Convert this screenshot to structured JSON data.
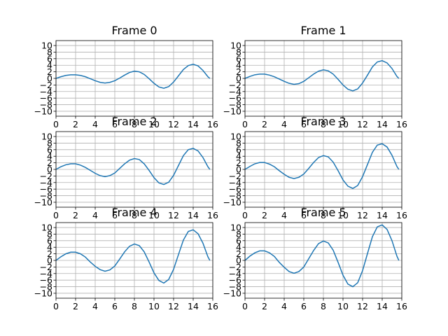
{
  "chart_data": [
    {
      "type": "line",
      "title": "Frame 0",
      "xlim": [
        0,
        16
      ],
      "ylim": [
        -11.5,
        11.5
      ],
      "grid": true,
      "x": [
        0,
        0.5,
        1,
        1.5,
        2,
        2.5,
        3,
        3.5,
        4,
        4.5,
        5,
        5.5,
        6,
        6.5,
        7,
        7.5,
        8,
        8.5,
        9,
        9.5,
        10,
        10.5,
        11,
        11.5,
        12,
        12.5,
        13,
        13.5,
        14,
        14.5,
        15,
        15.5,
        15.7
      ],
      "y": [
        0,
        0.5,
        0.9,
        1.1,
        1.1,
        0.9,
        0.5,
        -0.1,
        -0.7,
        -1.2,
        -1.4,
        -1.2,
        -0.7,
        0.1,
        1.0,
        1.8,
        2.2,
        2.0,
        1.2,
        -0.1,
        -1.5,
        -2.6,
        -3.0,
        -2.5,
        -1.1,
        0.8,
        2.7,
        3.9,
        4.3,
        3.8,
        2.4,
        0.5,
        0
      ]
    },
    {
      "type": "line",
      "title": "Frame 1",
      "xlim": [
        0,
        16
      ],
      "ylim": [
        -11.5,
        11.5
      ],
      "grid": true,
      "x": [
        0,
        0.5,
        1,
        1.5,
        2,
        2.5,
        3,
        3.5,
        4,
        4.5,
        5,
        5.5,
        6,
        6.5,
        7,
        7.5,
        8,
        8.5,
        9,
        9.5,
        10,
        10.5,
        11,
        11.5,
        12,
        12.5,
        13,
        13.5,
        14,
        14.5,
        15,
        15.5,
        15.7
      ],
      "y": [
        0,
        0.6,
        1.1,
        1.3,
        1.3,
        1.0,
        0.5,
        -0.2,
        -0.9,
        -1.5,
        -1.8,
        -1.6,
        -0.9,
        0.2,
        1.3,
        2.2,
        2.6,
        2.3,
        1.3,
        -0.3,
        -2.0,
        -3.3,
        -3.8,
        -3.2,
        -1.4,
        1.0,
        3.5,
        5.0,
        5.4,
        4.7,
        3.0,
        0.6,
        0
      ]
    },
    {
      "type": "line",
      "title": "Frame 2",
      "xlim": [
        0,
        16
      ],
      "ylim": [
        -11.5,
        11.5
      ],
      "grid": true,
      "x": [
        0,
        0.5,
        1,
        1.5,
        2,
        2.5,
        3,
        3.5,
        4,
        4.5,
        5,
        5.5,
        6,
        6.5,
        7,
        7.5,
        8,
        8.5,
        9,
        9.5,
        10,
        10.5,
        11,
        11.5,
        12,
        12.5,
        13,
        13.5,
        14,
        14.5,
        15,
        15.5,
        15.7
      ],
      "y": [
        0,
        0.8,
        1.4,
        1.7,
        1.7,
        1.3,
        0.6,
        -0.3,
        -1.2,
        -1.9,
        -2.2,
        -1.9,
        -1.1,
        0.3,
        1.7,
        2.8,
        3.3,
        3.0,
        1.7,
        -0.3,
        -2.5,
        -4.1,
        -4.6,
        -3.9,
        -1.8,
        1.2,
        4.2,
        6.0,
        6.4,
        5.6,
        3.6,
        0.8,
        0
      ]
    },
    {
      "type": "line",
      "title": "Frame 3",
      "xlim": [
        0,
        16
      ],
      "ylim": [
        -11.5,
        11.5
      ],
      "grid": true,
      "x": [
        0,
        0.5,
        1,
        1.5,
        2,
        2.5,
        3,
        3.5,
        4,
        4.5,
        5,
        5.5,
        6,
        6.5,
        7,
        7.5,
        8,
        8.5,
        9,
        9.5,
        10,
        10.5,
        11,
        11.5,
        12,
        12.5,
        13,
        13.5,
        14,
        14.5,
        15,
        15.5,
        15.7
      ],
      "y": [
        0,
        0.9,
        1.7,
        2.1,
        2.1,
        1.6,
        0.8,
        -0.4,
        -1.5,
        -2.4,
        -2.8,
        -2.4,
        -1.4,
        0.3,
        2.1,
        3.6,
        4.2,
        3.8,
        2.2,
        -0.4,
        -3.2,
        -5.1,
        -5.8,
        -4.9,
        -2.2,
        1.5,
        5.2,
        7.4,
        7.8,
        6.8,
        4.3,
        0.9,
        0
      ]
    },
    {
      "type": "line",
      "title": "Frame 4",
      "xlim": [
        0,
        16
      ],
      "ylim": [
        -11.5,
        11.5
      ],
      "grid": true,
      "x": [
        0,
        0.5,
        1,
        1.5,
        2,
        2.5,
        3,
        3.5,
        4,
        4.5,
        5,
        5.5,
        6,
        6.5,
        7,
        7.5,
        8,
        8.5,
        9,
        9.5,
        10,
        10.5,
        11,
        11.5,
        12,
        12.5,
        13,
        13.5,
        14,
        14.5,
        15,
        15.5,
        15.7
      ],
      "y": [
        0,
        1.1,
        2.0,
        2.5,
        2.5,
        2.0,
        1.0,
        -0.5,
        -1.8,
        -2.8,
        -3.3,
        -2.9,
        -1.7,
        0.4,
        2.6,
        4.3,
        5.0,
        4.5,
        2.6,
        -0.5,
        -3.8,
        -6.1,
        -6.9,
        -5.8,
        -2.7,
        1.8,
        6.2,
        8.8,
        9.3,
        8.1,
        5.2,
        1.1,
        0
      ]
    },
    {
      "type": "line",
      "title": "Frame 5",
      "xlim": [
        0,
        16
      ],
      "ylim": [
        -11.5,
        11.5
      ],
      "grid": true,
      "x": [
        0,
        0.5,
        1,
        1.5,
        2,
        2.5,
        3,
        3.5,
        4,
        4.5,
        5,
        5.5,
        6,
        6.5,
        7,
        7.5,
        8,
        8.5,
        9,
        9.5,
        10,
        10.5,
        11,
        11.5,
        12,
        12.5,
        13,
        13.5,
        14,
        14.5,
        15,
        15.5,
        15.7
      ],
      "y": [
        0,
        1.3,
        2.3,
        2.9,
        2.9,
        2.3,
        1.2,
        -0.6,
        -2.1,
        -3.4,
        -3.9,
        -3.4,
        -2.0,
        0.5,
        3.0,
        5.1,
        5.9,
        5.3,
        3.1,
        -0.6,
        -4.5,
        -7.2,
        -8.0,
        -6.8,
        -3.1,
        2.1,
        7.2,
        10.2,
        10.8,
        9.4,
        6.0,
        1.3,
        0
      ]
    }
  ],
  "axes": {
    "x_ticks": [
      0,
      2,
      4,
      6,
      8,
      10,
      12,
      14,
      16
    ],
    "y_ticks": [
      -10,
      -8,
      -6,
      -4,
      -2,
      0,
      2,
      4,
      6,
      8,
      10
    ],
    "line_color": "#1f77b4",
    "grid_color": "#b0b0b0"
  }
}
